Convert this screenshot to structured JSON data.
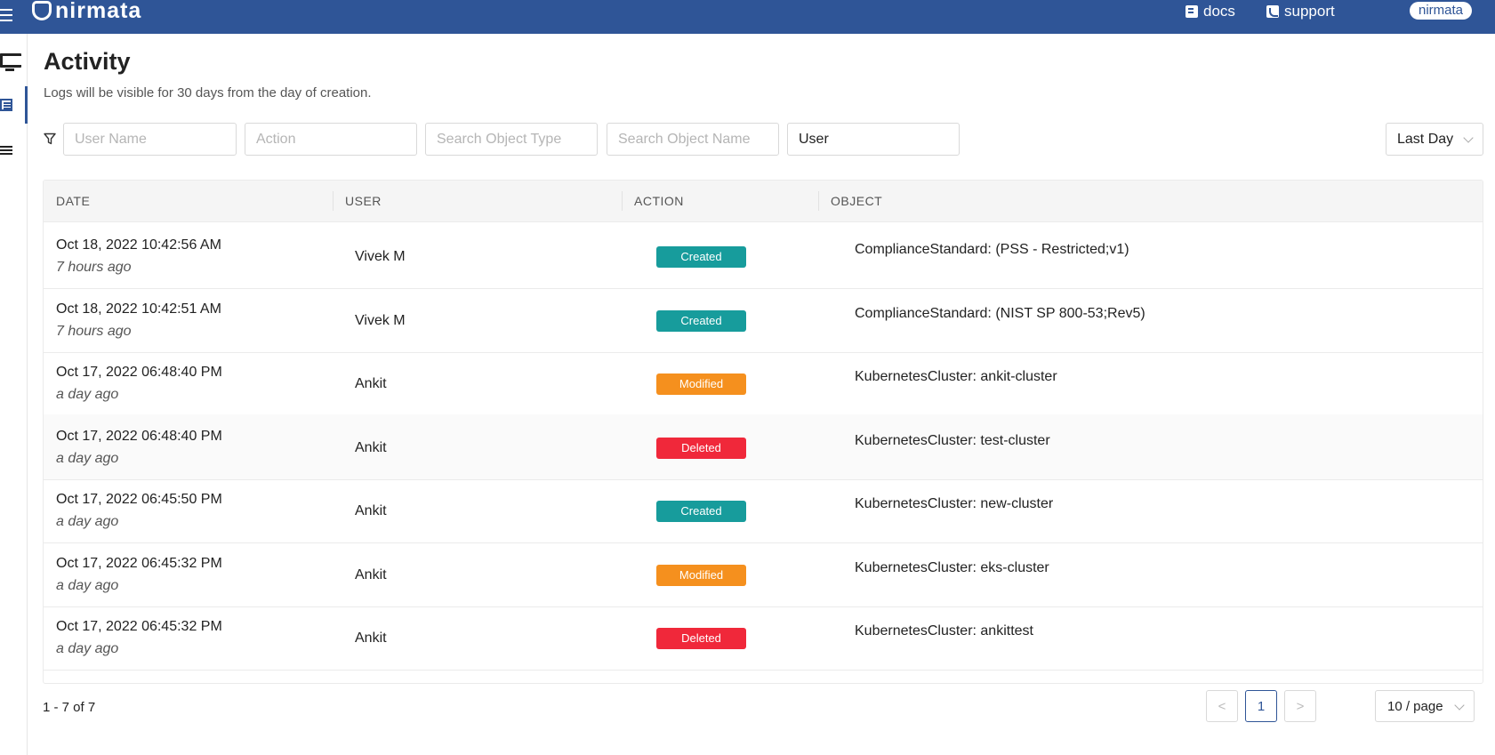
{
  "app": {
    "brand": "nirmata"
  },
  "topnav": {
    "docs": "docs",
    "support": "support",
    "user": "nirmata"
  },
  "page": {
    "title": "Activity",
    "subtitle": "Logs will be visible for 30 days from the day of creation."
  },
  "filters": {
    "user_name_placeholder": "User Name",
    "action_placeholder": "Action",
    "object_type_placeholder": "Search Object Type",
    "object_name_placeholder": "Search Object Name",
    "scope_value": "User",
    "range_value": "Last Day"
  },
  "table": {
    "headers": [
      "DATE",
      "USER",
      "ACTION",
      "OBJECT"
    ],
    "rows": [
      {
        "date": "Oct 18, 2022 10:42:56 AM",
        "ago": "7 hours ago",
        "user": "Vivek M",
        "action": "Created",
        "object": "ComplianceStandard: (PSS - Restricted;v1)"
      },
      {
        "date": "Oct 18, 2022 10:42:51 AM",
        "ago": "7 hours ago",
        "user": "Vivek M",
        "action": "Created",
        "object": "ComplianceStandard: (NIST SP 800-53;Rev5)"
      },
      {
        "date": "Oct 17, 2022 06:48:40 PM",
        "ago": "a day ago",
        "user": "Ankit",
        "action": "Modified",
        "object": "KubernetesCluster: ankit-cluster"
      },
      {
        "date": "Oct 17, 2022 06:48:40 PM",
        "ago": "a day ago",
        "user": "Ankit",
        "action": "Deleted",
        "object": "KubernetesCluster: test-cluster"
      },
      {
        "date": "Oct 17, 2022 06:45:50 PM",
        "ago": "a day ago",
        "user": "Ankit",
        "action": "Created",
        "object": "KubernetesCluster: new-cluster"
      },
      {
        "date": "Oct 17, 2022 06:45:32 PM",
        "ago": "a day ago",
        "user": "Ankit",
        "action": "Modified",
        "object": "KubernetesCluster: eks-cluster"
      },
      {
        "date": "Oct 17, 2022 06:45:32 PM",
        "ago": "a day ago",
        "user": "Ankit",
        "action": "Deleted",
        "object": "KubernetesCluster: ankittest"
      }
    ]
  },
  "badge_colors": {
    "Created": "#179c9c",
    "Modified": "#f5901e",
    "Deleted": "#f0283a"
  },
  "pagination": {
    "summary": "1 - 7 of 7",
    "prev": "<",
    "current": "1",
    "next": ">",
    "page_size": "10 / page"
  },
  "icons": {
    "menu": "hamburger-icon",
    "docs": "book-icon",
    "support": "phone-icon",
    "filter": "filter-icon",
    "sidebar": [
      "monitor-icon",
      "list-icon",
      "rows-icon"
    ]
  }
}
